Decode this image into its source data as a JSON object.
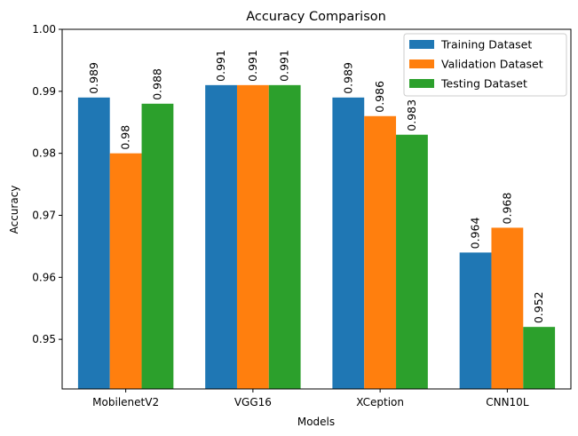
{
  "chart_data": {
    "type": "bar",
    "title": "Accuracy Comparison",
    "xlabel": "Models",
    "ylabel": "Accuracy",
    "categories": [
      "MobilenetV2",
      "VGG16",
      "XCeption",
      "CNN10L"
    ],
    "series": [
      {
        "name": "Training Dataset",
        "color": "#1f77b4",
        "values": [
          0.989,
          0.991,
          0.989,
          0.964
        ],
        "labels": [
          "0.989",
          "0.991",
          "0.989",
          "0.964"
        ]
      },
      {
        "name": "Validation Dataset",
        "color": "#ff7f0e",
        "values": [
          0.98,
          0.991,
          0.986,
          0.968
        ],
        "labels": [
          "0.98",
          "0.991",
          "0.986",
          "0.968"
        ]
      },
      {
        "name": "Testing Dataset",
        "color": "#2ca02c",
        "values": [
          0.988,
          0.991,
          0.983,
          0.952
        ],
        "labels": [
          "0.988",
          "0.991",
          "0.983",
          "0.952"
        ]
      }
    ],
    "ylim": [
      0.942,
      1.0
    ],
    "yticks": [
      0.95,
      0.96,
      0.97,
      0.98,
      0.99,
      1.0
    ],
    "ytick_labels": [
      "0.95",
      "0.96",
      "0.97",
      "0.98",
      "0.99",
      "1.00"
    ],
    "grid": false,
    "legend_position": "top-right"
  }
}
